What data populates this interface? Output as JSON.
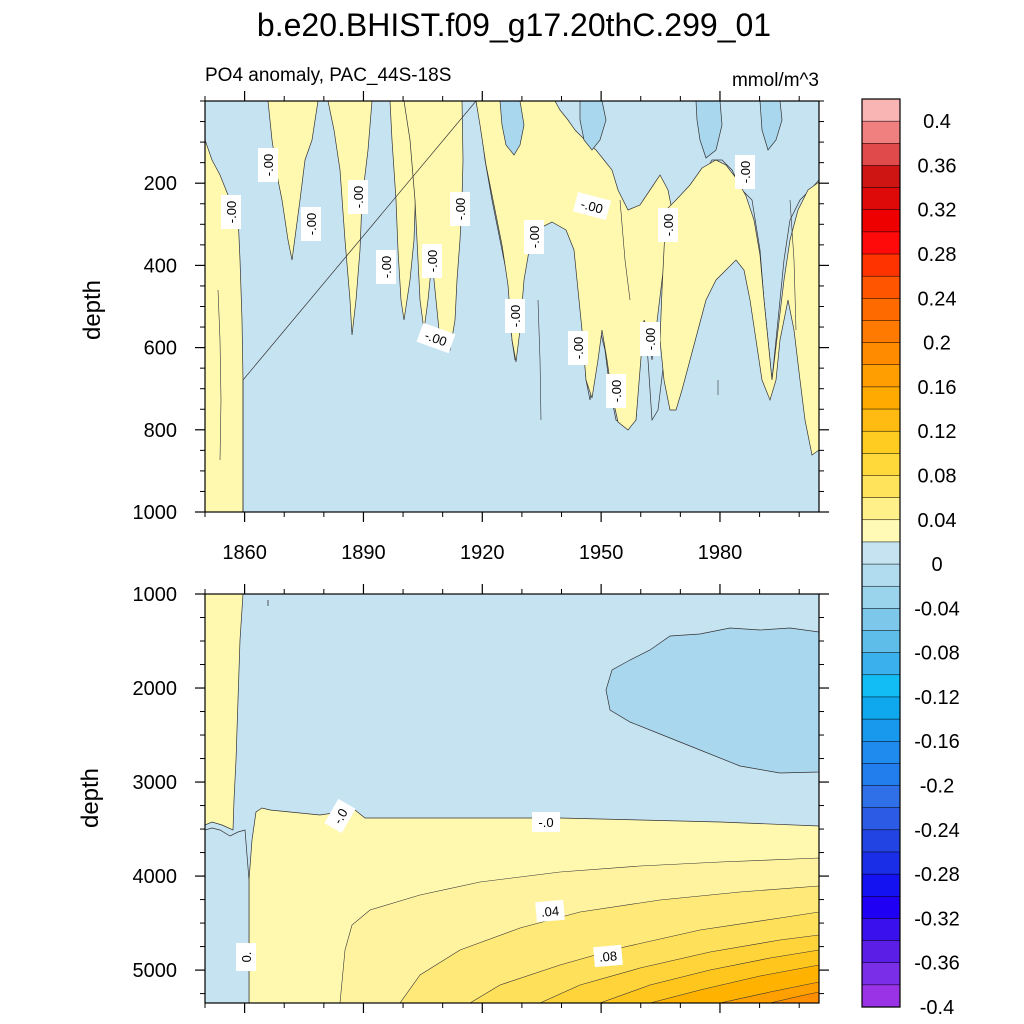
{
  "chart_data": [
    {
      "type": "heatmap",
      "panel": "upper",
      "title": "b.e20.BHIST.f09_g17.20thC.299_01",
      "subtitle": "PO4 anomaly, PAC_44S-18S",
      "units": "mmol/m^3",
      "xlabel": "",
      "ylabel": "depth",
      "xlim": [
        1850,
        2005
      ],
      "ylim": [
        1000,
        0
      ],
      "x_ticks": [
        1860,
        1890,
        1920,
        1950,
        1980
      ],
      "y_ticks": [
        200,
        400,
        600,
        800,
        1000
      ],
      "contour_labels": [
        "-.00",
        "-.00",
        "-.00",
        "-.00",
        "-.00",
        "-.00",
        "-.00",
        "-.00",
        "-.00",
        "-.00",
        "-.00",
        "-.00",
        "-.00",
        "-.00",
        "-.00",
        "-.00"
      ],
      "description_levels": [
        -0.04,
        0.0,
        0.04
      ],
      "colors": {
        "neg_small": "#c6e3f2",
        "neg_mid": "#a9d7ee",
        "pos_small": "#fff9b0"
      }
    },
    {
      "type": "heatmap",
      "panel": "lower",
      "xlabel": "",
      "ylabel": "depth",
      "xlim": [
        1850,
        2005
      ],
      "ylim": [
        5350,
        1000
      ],
      "x_ticks": [
        1860,
        1890,
        1920,
        1950,
        1980
      ],
      "y_ticks": [
        1000,
        2000,
        3000,
        4000,
        5000
      ],
      "contour_labels": [
        "-.0",
        "-.0",
        ".04",
        ".08",
        "0."
      ]
    }
  ],
  "colorbar": {
    "labels": [
      "0.4",
      "0.36",
      "0.32",
      "0.28",
      "0.24",
      "0.2",
      "0.16",
      "0.12",
      "0.08",
      "0.04",
      "0",
      "-0.04",
      "-0.08",
      "-0.12",
      "-0.16",
      "-0.2",
      "-0.24",
      "-0.28",
      "-0.32",
      "-0.36",
      "-0.4"
    ],
    "colors": [
      "#f9b4b4",
      "#f08080",
      "#e04a4a",
      "#cf1414",
      "#de0a0a",
      "#ef0000",
      "#ff0a0a",
      "#ff3300",
      "#ff5500",
      "#ff6a00",
      "#ff7a00",
      "#ff8c00",
      "#ff9e00",
      "#ffaa00",
      "#ffbb11",
      "#ffcc22",
      "#ffd93a",
      "#ffe35a",
      "#fff08a",
      "#fffab5",
      "#c6e3f2",
      "#b1dcf0",
      "#9ad3ec",
      "#7dc7ea",
      "#5ebde9",
      "#3ab1ec",
      "#12bcf5",
      "#0fa8ee",
      "#1999ee",
      "#208bee",
      "#227ded",
      "#2f6fe8",
      "#2c5be5",
      "#2244e3",
      "#1a2ee8",
      "#1512f2",
      "#2000f5",
      "#3a10ec",
      "#5a1ee6",
      "#7a2ee8",
      "#9a32e6"
    ]
  }
}
